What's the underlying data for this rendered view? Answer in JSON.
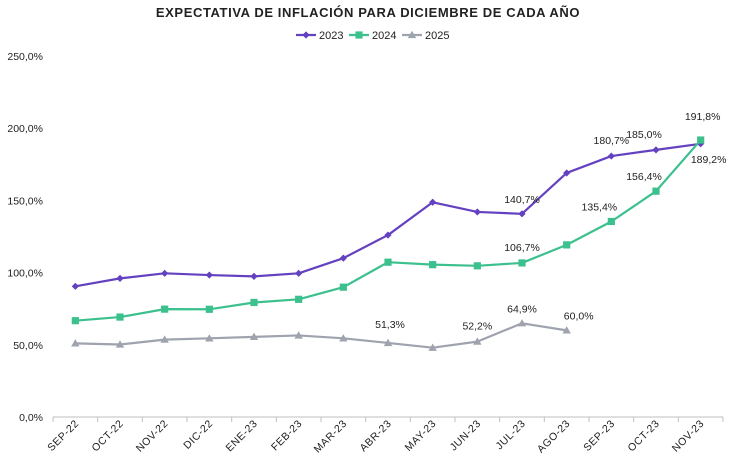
{
  "chart_data": {
    "type": "line",
    "title": "EXPECTATIVA DE INFLACIÓN PARA DICIEMBRE DE CADA AÑO",
    "xlabel": "",
    "ylabel": "",
    "ylim": [
      0,
      250
    ],
    "y_ticks": [
      "0,0%",
      "50,0%",
      "100,0%",
      "150,0%",
      "200,0%",
      "250,0%"
    ],
    "legend_position": "top-center",
    "grid": false,
    "categories": [
      "SEP-22",
      "OCT-22",
      "NOV-22",
      "DIC-22",
      "ENE-23",
      "FEB-23",
      "MAR-23",
      "ABR-23",
      "MAY-23",
      "JUN-23",
      "JUL-23",
      "AGO-23",
      "SEP-23",
      "OCT-23",
      "NOV-23"
    ],
    "series": [
      {
        "name": "2023",
        "color": "#6441c0",
        "marker": "diamond",
        "values": [
          90.5,
          96.0,
          99.5,
          98.3,
          97.4,
          99.5,
          110.0,
          126.0,
          148.7,
          142.0,
          140.7,
          169.0,
          180.7,
          185.0,
          189.2
        ]
      },
      {
        "name": "2024",
        "color": "#3cc08e",
        "marker": "square",
        "values": [
          66.7,
          69.2,
          74.7,
          74.6,
          79.3,
          81.5,
          89.9,
          107.2,
          105.5,
          104.7,
          106.7,
          119.2,
          135.4,
          156.4,
          191.8
        ]
      },
      {
        "name": "2025",
        "color": "#9ea3ad",
        "marker": "triangle",
        "values": [
          51.0,
          50.2,
          53.6,
          54.5,
          55.5,
          56.5,
          54.5,
          51.3,
          48.0,
          52.2,
          64.9,
          60.0,
          null,
          null,
          null
        ]
      }
    ],
    "data_labels": [
      {
        "series": 0,
        "index": 10,
        "text": "140,7%"
      },
      {
        "series": 0,
        "index": 12,
        "text": "180,7%"
      },
      {
        "series": 0,
        "index": 13,
        "text": "185,0%"
      },
      {
        "series": 0,
        "index": 14,
        "text": "189,2%"
      },
      {
        "series": 1,
        "index": 10,
        "text": "106,7%"
      },
      {
        "series": 1,
        "index": 12,
        "text": "135,4%"
      },
      {
        "series": 1,
        "index": 13,
        "text": "156,4%"
      },
      {
        "series": 1,
        "index": 14,
        "text": "191,8%"
      },
      {
        "series": 2,
        "index": 7,
        "text": "51,3%"
      },
      {
        "series": 2,
        "index": 9,
        "text": "52,2%"
      },
      {
        "series": 2,
        "index": 10,
        "text": "64,9%"
      },
      {
        "series": 2,
        "index": 11,
        "text": "60,0%"
      }
    ]
  }
}
